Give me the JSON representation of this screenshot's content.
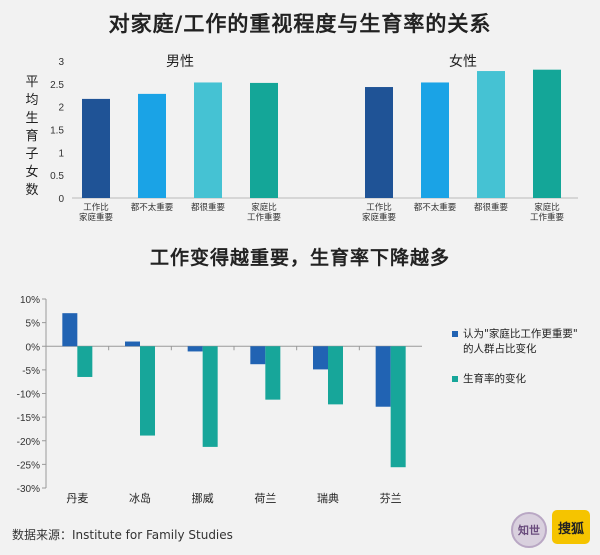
{
  "chart_data": [
    {
      "type": "bar",
      "title": "对家庭/工作的重视程度与生育率的关系",
      "ylabel": "平均生育子女数",
      "ylim": [
        0,
        3
      ],
      "yticks": [
        "0",
        "0.5",
        "1",
        "1.5",
        "2",
        "2.5",
        "3"
      ],
      "ytick_values": [
        0,
        0.5,
        1,
        1.5,
        2,
        2.5,
        3
      ],
      "grid": false,
      "groups": [
        {
          "name": "男性",
          "categories": [
            [
              "工作比",
              "家庭重要"
            ],
            [
              "都不太重要"
            ],
            [
              "都很重要"
            ],
            [
              "家庭比",
              "工作重要"
            ]
          ],
          "values": [
            2.17,
            2.28,
            2.53,
            2.52
          ]
        },
        {
          "name": "女性",
          "categories": [
            [
              "工作比",
              "家庭重要"
            ],
            [
              "都不太重要"
            ],
            [
              "都很重要"
            ],
            [
              "家庭比",
              "工作重要"
            ]
          ],
          "values": [
            2.43,
            2.53,
            2.78,
            2.81
          ]
        }
      ],
      "colors": [
        "#1f5396",
        "#1aa3e6",
        "#45c2d3",
        "#14a698"
      ]
    },
    {
      "type": "bar",
      "title": "工作变得越重要，生育率下降越多",
      "categories": [
        "丹麦",
        "冰岛",
        "挪威",
        "荷兰",
        "瑞典",
        "芬兰"
      ],
      "ylim": [
        -30,
        10
      ],
      "yticks": [
        "10%",
        "5%",
        "0%",
        "-5%",
        "-10%",
        "-15%",
        "-20%",
        "-25%",
        "-30%"
      ],
      "ytick_values": [
        10,
        5,
        0,
        -5,
        -10,
        -15,
        -20,
        -25,
        -30
      ],
      "grid": false,
      "legend": "right",
      "series": [
        {
          "name": "认为\"家庭比工作更重要\"的人群占比变化",
          "legend_lines": [
            "认为\"家庭比工作更重要\"",
            "的人群占比变化"
          ],
          "color": "#2163b3",
          "values": [
            7.0,
            1.0,
            -1.1,
            -3.8,
            -4.9,
            -12.8
          ]
        },
        {
          "name": "生育率的变化",
          "legend_lines": [
            "生育率的变化"
          ],
          "color": "#17a69a",
          "values": [
            -6.5,
            -18.9,
            -21.3,
            -11.3,
            -12.3,
            -25.6
          ]
        }
      ]
    }
  ],
  "footer": {
    "source": "数据来源：Institute for Family Studies",
    "logo_zhishi": "知世",
    "logo_sohu": "搜狐"
  }
}
